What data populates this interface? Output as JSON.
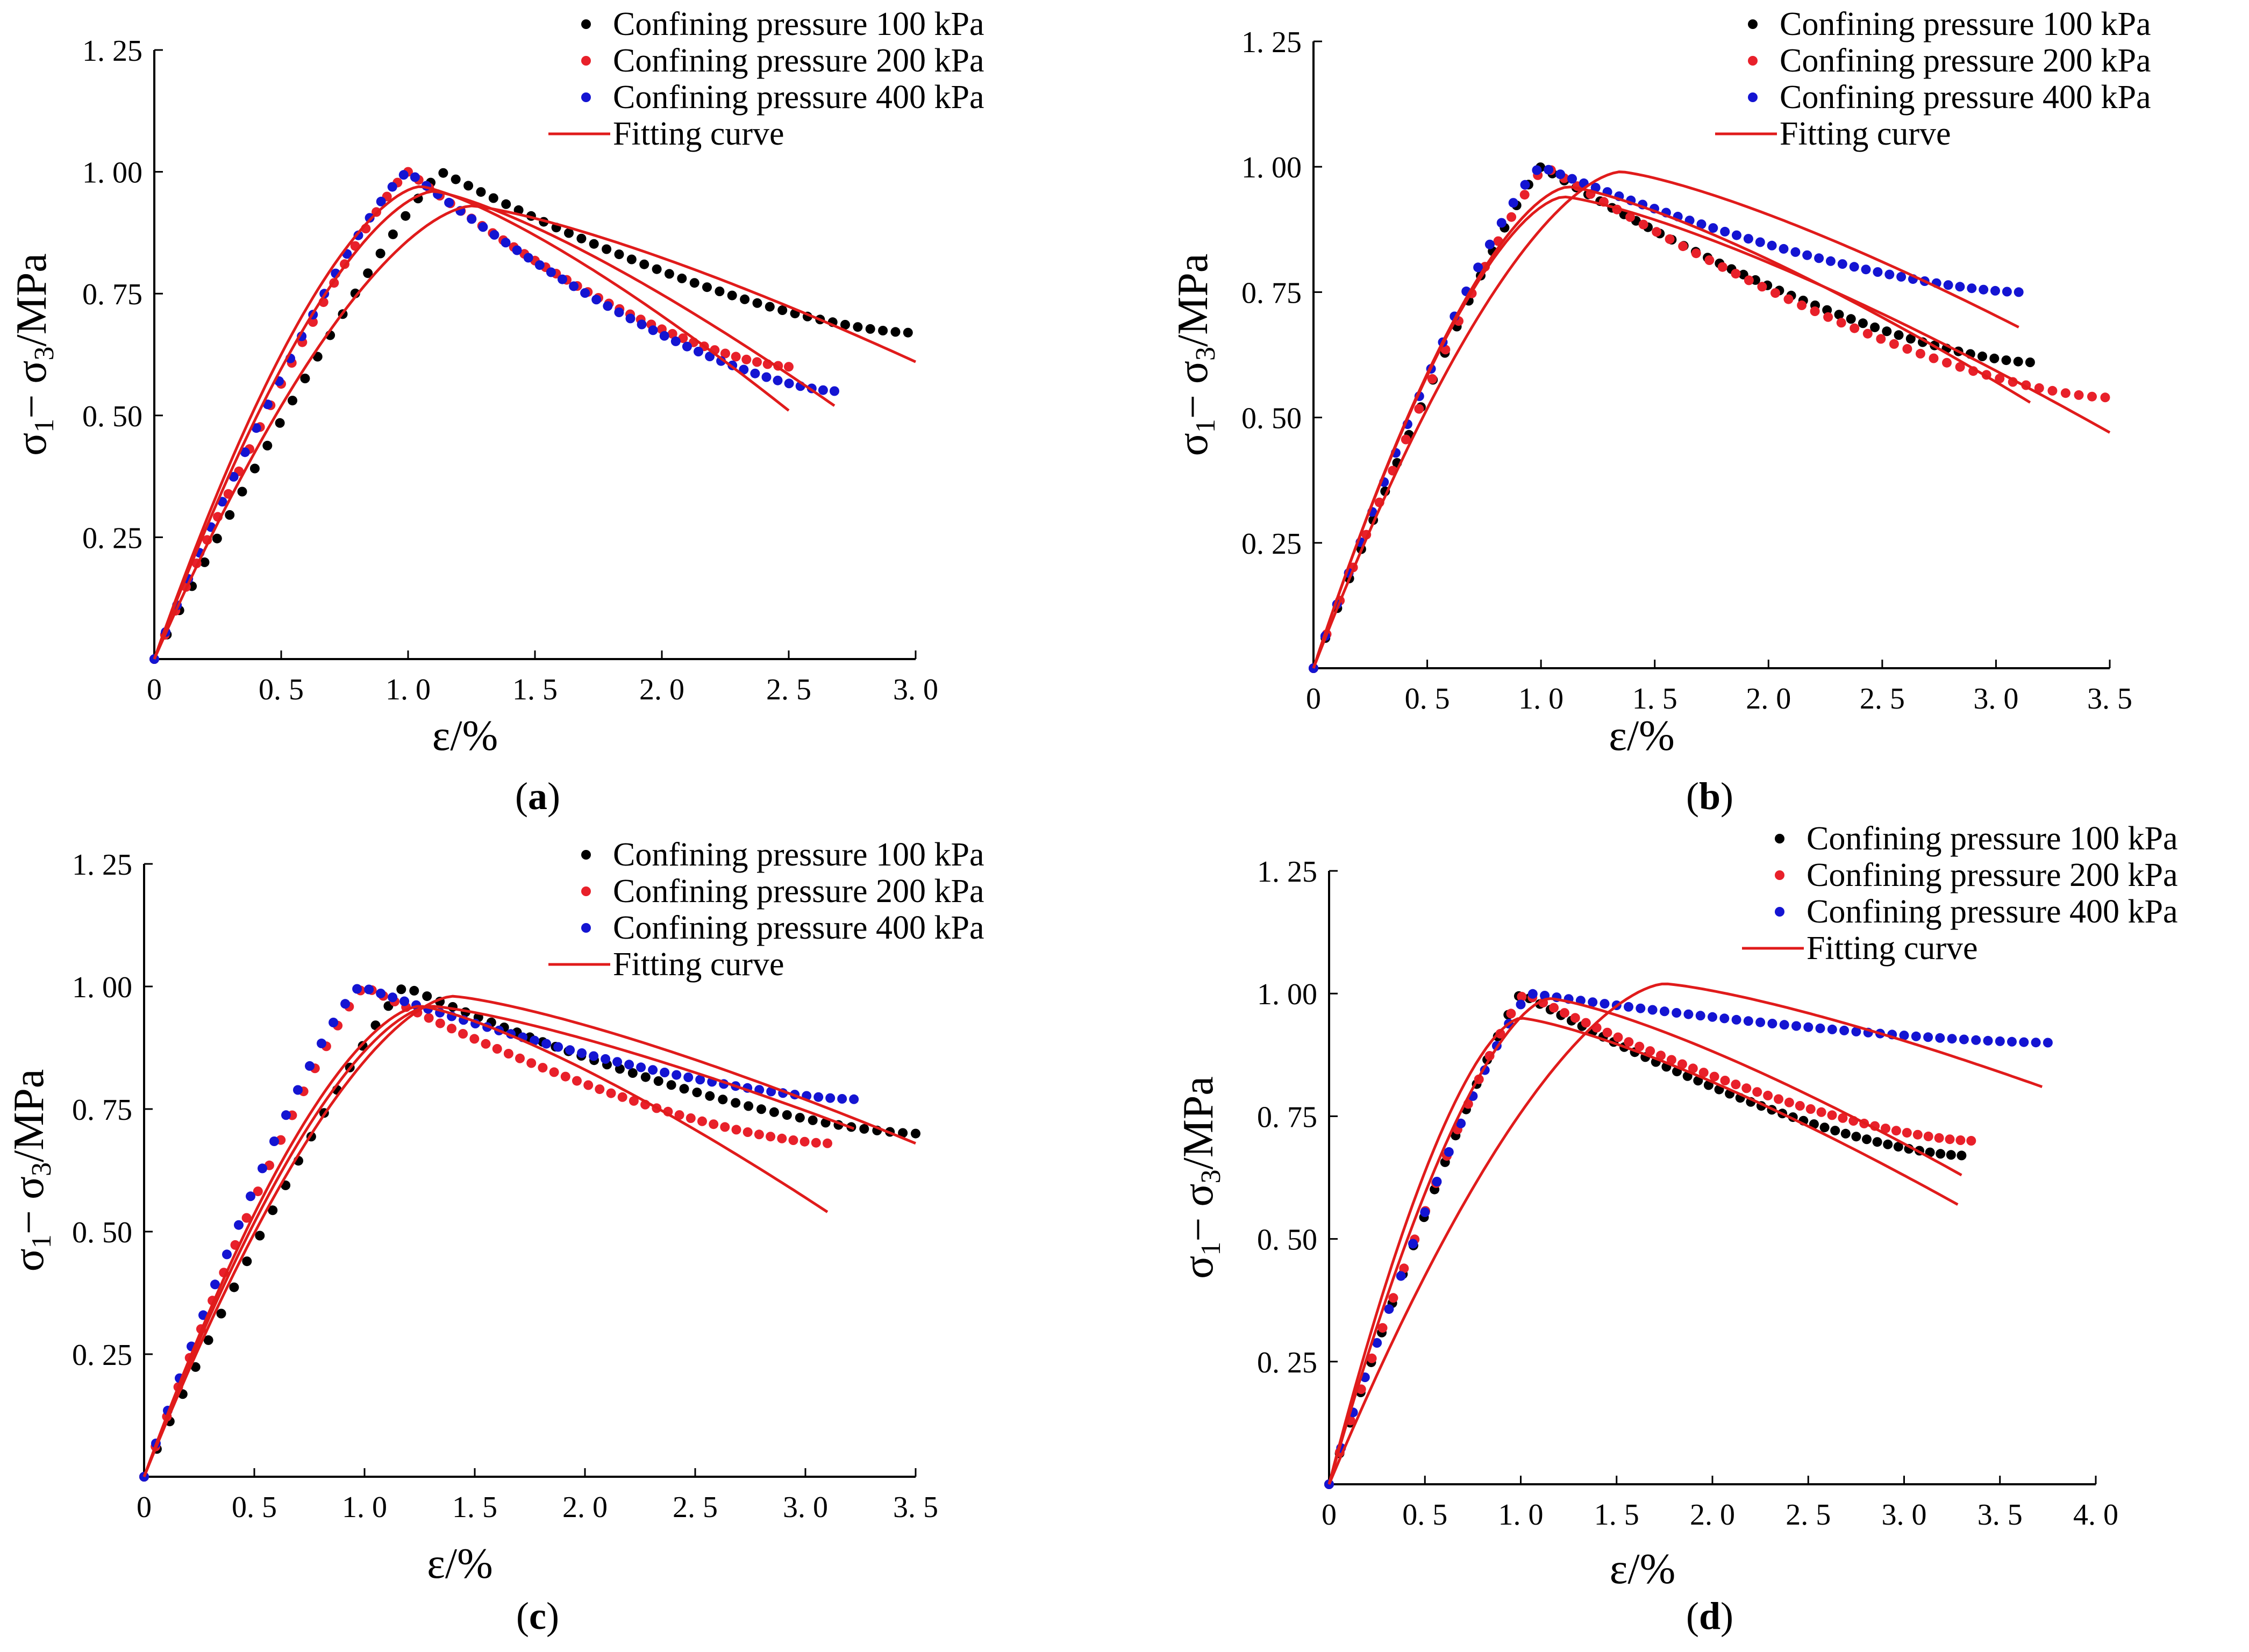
{
  "colors": {
    "series_100": "#000000",
    "series_200": "#e8202a",
    "series_400": "#1414d2",
    "fitting": "#e01b1b",
    "axis": "#000000"
  },
  "chart_data": [
    {
      "panel": "a",
      "caption_letter": "a",
      "type": "scatter",
      "xlabel": "ε/%",
      "ylabel_parts": {
        "s1": "σ",
        "sub1": "1",
        "minus": "−",
        "s3": "σ",
        "sub3": "3",
        "unit": "/MPa"
      },
      "xlim": [
        0,
        3.0
      ],
      "ylim": [
        0,
        1.25
      ],
      "xticks": [
        0,
        0.5,
        1.0,
        1.5,
        2.0,
        2.5,
        3.0
      ],
      "xtick_labels": [
        "0",
        "0. 5",
        "1. 0",
        "1. 5",
        "2. 0",
        "2. 5",
        "3. 0"
      ],
      "yticks": [
        0.25,
        0.5,
        0.75,
        1.0,
        1.25
      ],
      "ytick_labels": [
        "0. 25",
        "0. 50",
        "0. 75",
        "1. 00",
        "1. 25"
      ],
      "legend": [
        "Confining pressure 100 kPa",
        "Confining pressure 200 kPa",
        "Confining pressure 400 kPa",
        "Fitting curve"
      ],
      "series": [
        {
          "name": "Confining pressure 100 kPa",
          "peak_x": 1.13,
          "peak_y": 1.0,
          "end_x": 2.97,
          "end_y": 0.67
        },
        {
          "name": "Confining pressure 200 kPa",
          "peak_x": 1.0,
          "peak_y": 1.0,
          "end_x": 2.5,
          "end_y": 0.6
        },
        {
          "name": "Confining pressure 400 kPa",
          "peak_x": 1.0,
          "peak_y": 1.0,
          "end_x": 2.68,
          "end_y": 0.55
        }
      ],
      "fits": [
        {
          "peak_x": 1.25,
          "peak_y": 0.93,
          "end_x": 3.0,
          "end_y": 0.61
        },
        {
          "peak_x": 1.05,
          "peak_y": 0.97,
          "end_x": 2.5,
          "end_y": 0.51
        },
        {
          "peak_x": 1.1,
          "peak_y": 0.96,
          "end_x": 2.68,
          "end_y": 0.52
        }
      ]
    },
    {
      "panel": "b",
      "caption_letter": "b",
      "type": "scatter",
      "xlabel": "ε/%",
      "ylabel_parts": {
        "s1": "σ",
        "sub1": "1",
        "minus": "−",
        "s3": "σ",
        "sub3": "3",
        "unit": "/MPa"
      },
      "xlim": [
        0,
        3.5
      ],
      "ylim": [
        0,
        1.25
      ],
      "xticks": [
        0,
        0.5,
        1.0,
        1.5,
        2.0,
        2.5,
        3.0,
        3.5
      ],
      "xtick_labels": [
        "0",
        "0. 5",
        "1. 0",
        "1. 5",
        "2. 0",
        "2. 5",
        "3. 0",
        "3. 5"
      ],
      "yticks": [
        0.25,
        0.5,
        0.75,
        1.0,
        1.25
      ],
      "ytick_labels": [
        "0. 25",
        "0. 50",
        "0. 75",
        "1. 00",
        "1. 25"
      ],
      "legend": [
        "Confining pressure 100 kPa",
        "Confining pressure 200 kPa",
        "Confining pressure 400 kPa",
        "Fitting curve"
      ],
      "series": [
        {
          "name": "Confining pressure 100 kPa",
          "peak_x": 1.0,
          "peak_y": 1.0,
          "end_x": 3.15,
          "end_y": 0.61
        },
        {
          "name": "Confining pressure 200 kPa",
          "peak_x": 1.02,
          "peak_y": 1.0,
          "end_x": 3.48,
          "end_y": 0.54
        },
        {
          "name": "Confining pressure 400 kPa",
          "peak_x": 1.0,
          "peak_y": 1.0,
          "end_x": 3.1,
          "end_y": 0.75
        }
      ],
      "fits": [
        {
          "peak_x": 1.35,
          "peak_y": 0.99,
          "end_x": 3.1,
          "end_y": 0.68
        },
        {
          "peak_x": 1.12,
          "peak_y": 0.96,
          "end_x": 3.15,
          "end_y": 0.53
        },
        {
          "peak_x": 1.1,
          "peak_y": 0.94,
          "end_x": 3.5,
          "end_y": 0.47
        }
      ]
    },
    {
      "panel": "c",
      "caption_letter": "c",
      "type": "scatter",
      "xlabel": "ε/%",
      "ylabel_parts": {
        "s1": "σ",
        "sub1": "1",
        "minus": "−",
        "s3": "σ",
        "sub3": "3",
        "unit": "/MPa"
      },
      "xlim": [
        0,
        3.5
      ],
      "ylim": [
        0,
        1.25
      ],
      "xticks": [
        0,
        0.5,
        1.0,
        1.5,
        2.0,
        2.5,
        3.0,
        3.5
      ],
      "xtick_labels": [
        "0",
        "0. 5",
        "1. 0",
        "1. 5",
        "2. 0",
        "2. 5",
        "3. 0",
        "3. 5"
      ],
      "yticks": [
        0.25,
        0.5,
        0.75,
        1.0,
        1.25
      ],
      "ytick_labels": [
        "0. 25",
        "0. 50",
        "0. 75",
        "1. 00",
        "1. 25"
      ],
      "legend": [
        "Confining pressure 100 kPa",
        "Confining pressure 200 kPa",
        "Confining pressure 400 kPa",
        "Fitting curve"
      ],
      "series": [
        {
          "name": "Confining pressure 100 kPa",
          "peak_x": 1.18,
          "peak_y": 1.0,
          "end_x": 3.5,
          "end_y": 0.7
        },
        {
          "name": "Confining pressure 200 kPa",
          "peak_x": 1.0,
          "peak_y": 1.0,
          "end_x": 3.1,
          "end_y": 0.68
        },
        {
          "name": "Confining pressure 400 kPa",
          "peak_x": 0.98,
          "peak_y": 1.0,
          "end_x": 3.22,
          "end_y": 0.77
        }
      ],
      "fits": [
        {
          "peak_x": 1.4,
          "peak_y": 0.98,
          "end_x": 3.5,
          "end_y": 0.68
        },
        {
          "peak_x": 1.3,
          "peak_y": 0.96,
          "end_x": 3.22,
          "end_y": 0.71
        },
        {
          "peak_x": 1.25,
          "peak_y": 0.96,
          "end_x": 3.1,
          "end_y": 0.54
        }
      ]
    },
    {
      "panel": "d",
      "caption_letter": "d",
      "type": "scatter",
      "xlabel": "ε/%",
      "ylabel_parts": {
        "s1": "σ",
        "sub1": "1",
        "minus": "−",
        "s3": "σ",
        "sub3": "3",
        "unit": "/MPa"
      },
      "xlim": [
        0,
        4.0
      ],
      "ylim": [
        0,
        1.25
      ],
      "xticks": [
        0,
        0.5,
        1.0,
        1.5,
        2.0,
        2.5,
        3.0,
        3.5,
        4.0
      ],
      "xtick_labels": [
        "0",
        "0. 5",
        "1. 0",
        "1. 5",
        "2. 0",
        "2. 5",
        "3. 0",
        "3. 5",
        "4. 0"
      ],
      "yticks": [
        0.25,
        0.5,
        0.75,
        1.0,
        1.25
      ],
      "ytick_labels": [
        "0. 25",
        "0. 50",
        "0. 75",
        "1. 00",
        "1. 25"
      ],
      "legend": [
        "Confining pressure 100 kPa",
        "Confining pressure 200 kPa",
        "Confining pressure 400 kPa",
        "Fitting curve"
      ],
      "series": [
        {
          "name": "Confining pressure 100 kPa",
          "peak_x": 1.0,
          "peak_y": 1.0,
          "end_x": 3.3,
          "end_y": 0.67
        },
        {
          "name": "Confining pressure 200 kPa",
          "peak_x": 1.02,
          "peak_y": 1.0,
          "end_x": 3.35,
          "end_y": 0.7
        },
        {
          "name": "Confining pressure 400 kPa",
          "peak_x": 1.05,
          "peak_y": 1.0,
          "end_x": 3.75,
          "end_y": 0.9
        }
      ],
      "fits": [
        {
          "peak_x": 1.75,
          "peak_y": 1.02,
          "end_x": 3.72,
          "end_y": 0.81
        },
        {
          "peak_x": 1.15,
          "peak_y": 0.99,
          "end_x": 3.3,
          "end_y": 0.63
        },
        {
          "peak_x": 1.0,
          "peak_y": 0.95,
          "end_x": 3.28,
          "end_y": 0.57
        }
      ]
    }
  ]
}
